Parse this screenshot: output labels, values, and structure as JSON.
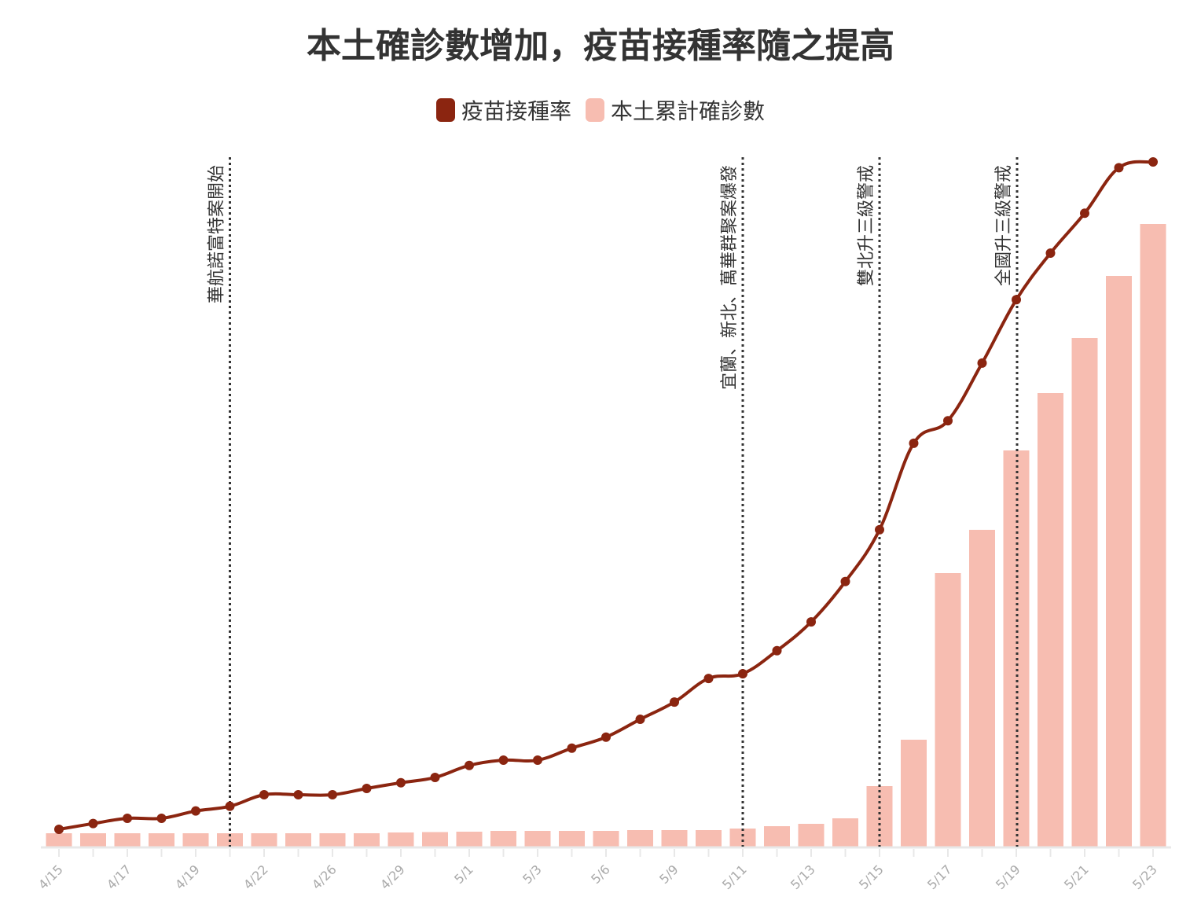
{
  "chart_data": {
    "type": "bar+line",
    "title": "本土確診數增加，疫苗接種率隨之提高",
    "legend_position": "top",
    "grid": false,
    "colors": {
      "line": "#8b2510",
      "bar": "#f7bdb1",
      "annotation": "#333333"
    },
    "categories": [
      "4/15",
      "",
      "4/17",
      "",
      "4/19",
      "",
      "4/22",
      "",
      "4/26",
      "",
      "4/29",
      "",
      "5/1",
      "",
      "5/3",
      "",
      "5/6",
      "",
      "5/9",
      "",
      "5/11",
      "",
      "5/13",
      "",
      "5/15",
      "",
      "5/17",
      "",
      "5/19",
      "",
      "5/21",
      "",
      "5/23"
    ],
    "series": [
      {
        "name": "疫苗接種率",
        "type": "line",
        "values": [
          0.033,
          0.044,
          0.054,
          0.054,
          0.068,
          0.077,
          0.099,
          0.099,
          0.099,
          0.111,
          0.122,
          0.132,
          0.155,
          0.165,
          0.165,
          0.188,
          0.209,
          0.243,
          0.276,
          0.321,
          0.33,
          0.374,
          0.429,
          0.506,
          0.605,
          0.77,
          0.813,
          0.923,
          1.044,
          1.133,
          1.209,
          1.296,
          1.307
        ]
      },
      {
        "name": "本土累計確診數",
        "type": "bar",
        "values": [
          68,
          68,
          68,
          68,
          68,
          68,
          68,
          68,
          68,
          68,
          72,
          74,
          76,
          80,
          80,
          80,
          80,
          84,
          84,
          84,
          92,
          104,
          116,
          144,
          308,
          544,
          1392,
          1612,
          2016,
          2308,
          2588,
          2904,
          3168
        ]
      }
    ],
    "annotations": [
      {
        "category_index": 5,
        "text": "華航諾富特案開始"
      },
      {
        "category_index": 20,
        "text": "宜蘭、新北、萬華群聚案爆發"
      },
      {
        "category_index": 24,
        "text": "雙北升三級警戒"
      },
      {
        "category_index": 28,
        "text": "全國升三級警戒"
      }
    ]
  }
}
